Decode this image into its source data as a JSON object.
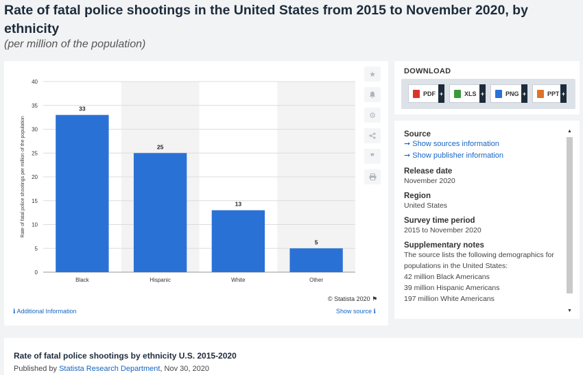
{
  "title": "Rate of fatal police shootings in the United States from 2015 to November 2020, by ethnicity",
  "subtitle": "(per million of the population)",
  "chart_data": {
    "type": "bar",
    "categories": [
      "Black",
      "Hispanic",
      "White",
      "Other"
    ],
    "values": [
      33,
      25,
      13,
      5
    ],
    "ylabel": "Rate of fatal police shootings per million of the population",
    "xlabel": "",
    "ylim": [
      0,
      40
    ],
    "yticks": [
      0,
      5,
      10,
      15,
      20,
      25,
      30,
      35,
      40
    ],
    "bar_color": "#2a71d6",
    "grid": true,
    "data_labels": true
  },
  "chart_footer": {
    "copyright": "© Statista 2020",
    "additional_info": "Additional Information",
    "show_source": "Show source"
  },
  "tools": [
    "star-icon",
    "bell-icon",
    "gear-icon",
    "share-icon",
    "quote-icon",
    "print-icon"
  ],
  "download": {
    "title": "DOWNLOAD",
    "buttons": [
      {
        "label": "PDF",
        "color": "#d9342b"
      },
      {
        "label": "XLS",
        "color": "#3a9a3a"
      },
      {
        "label": "PNG",
        "color": "#2a71d6"
      },
      {
        "label": "PPT",
        "color": "#e0702a"
      }
    ]
  },
  "info": {
    "source_heading": "Source",
    "show_sources": "Show sources information",
    "show_publisher": "Show publisher information",
    "release_heading": "Release date",
    "release_value": "November 2020",
    "region_heading": "Region",
    "region_value": "United States",
    "survey_heading": "Survey time period",
    "survey_value": "2015 to November 2020",
    "notes_heading": "Supplementary notes",
    "notes_lines": [
      "The source lists the following demographics for",
      "populations in the United States:",
      "42 million Black Americans",
      "39 million Hispanic Americans",
      "197 million White Americans"
    ]
  },
  "bottom": {
    "title": "Rate of fatal police shootings by ethnicity U.S. 2015-2020",
    "published_prefix": "Published by",
    "publisher": "Statista Research Department",
    "date_suffix": ", Nov 30, 2020"
  },
  "colors": {
    "accent": "#1565c0",
    "bar": "#2a71d6",
    "navy": "#1d2b3a"
  }
}
